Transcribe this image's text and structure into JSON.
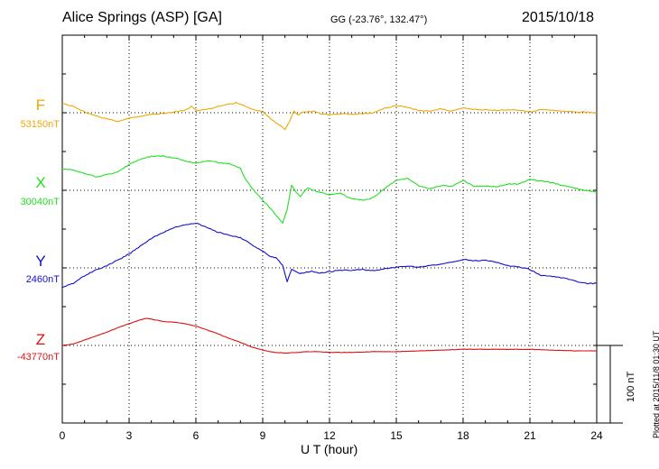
{
  "header": {
    "station": "Alice Springs (ASP)  [GA]",
    "coords": "GG (-23.76°, 132.47°)",
    "date": "2015/10/18"
  },
  "plotted_note": "Plotted at 2015/11/8 01:30 UT",
  "scale_label": "100 nT",
  "colors": {
    "F": "#f0a800",
    "X": "#22e022",
    "Y": "#1010d0",
    "Z": "#e01010",
    "grid": "#000000"
  },
  "chart_data": {
    "type": "line",
    "xlabel": "U T (hour)",
    "xlim": [
      0,
      24
    ],
    "xticks": [
      "0",
      "3",
      "6",
      "9",
      "12",
      "15",
      "18",
      "21",
      "24"
    ],
    "grid": "dotted",
    "scale_bar_nT": 100,
    "series": [
      {
        "name": "F",
        "baseline_label": "53150nT",
        "x": [
          0,
          0.5,
          1,
          1.5,
          2,
          2.5,
          3,
          3.5,
          4,
          4.5,
          5,
          5.5,
          5.8,
          6,
          6.5,
          7,
          7.5,
          7.8,
          8,
          8.5,
          9,
          9.2,
          9.5,
          9.8,
          10,
          10.2,
          10.4,
          10.6,
          10.8,
          11,
          11.3,
          11.6,
          12,
          12.5,
          13,
          13.5,
          14,
          14.5,
          15,
          15.5,
          16,
          16.5,
          17,
          17.5,
          18,
          18.5,
          19,
          19.5,
          20,
          20.5,
          21,
          21.5,
          22,
          22.5,
          23,
          23.5,
          24
        ],
        "values": [
          12,
          8,
          1,
          -4,
          -8,
          -11,
          -7,
          -5,
          -2,
          -1,
          1,
          3,
          8,
          3,
          4,
          8,
          11,
          13,
          11,
          5,
          1,
          -4,
          -11,
          -17,
          -22,
          -12,
          2,
          -3,
          1,
          1,
          2,
          -1,
          -3,
          -1,
          -2,
          -1,
          0,
          6,
          9,
          7,
          3,
          2,
          5,
          2,
          6,
          4,
          4,
          3,
          4,
          3,
          1,
          4,
          3,
          2,
          1,
          1,
          0
        ]
      },
      {
        "name": "X",
        "baseline_label": "30040nT",
        "x": [
          0,
          0.5,
          1,
          1.5,
          2,
          2.5,
          3,
          3.5,
          4,
          4.5,
          5,
          5.5,
          6,
          6.5,
          7,
          7.5,
          8,
          8.2,
          8.5,
          9,
          9.3,
          9.6,
          9.9,
          10.1,
          10.3,
          10.5,
          10.7,
          11,
          11.5,
          12,
          12.5,
          13,
          13.5,
          14,
          14.5,
          15,
          15.5,
          16,
          16.5,
          17,
          17.5,
          18,
          18.5,
          19,
          19.5,
          20,
          20.5,
          21,
          21.5,
          22,
          22.5,
          23,
          23.5,
          24
        ],
        "values": [
          28,
          26,
          22,
          17,
          20,
          24,
          33,
          40,
          44,
          44,
          42,
          38,
          35,
          38,
          36,
          34,
          28,
          16,
          3,
          -13,
          -22,
          -32,
          -42,
          -25,
          7,
          -2,
          -8,
          3,
          -2,
          -6,
          -4,
          -11,
          -13,
          -9,
          3,
          13,
          15,
          6,
          2,
          6,
          5,
          13,
          5,
          6,
          4,
          8,
          8,
          14,
          12,
          10,
          6,
          3,
          0,
          -2
        ]
      },
      {
        "name": "Y",
        "baseline_label": "2460nT",
        "x": [
          0,
          0.5,
          1,
          1.5,
          2,
          2.5,
          3,
          3.5,
          4,
          4.5,
          5,
          5.5,
          6,
          6.5,
          7,
          7.5,
          8,
          8.5,
          9,
          9.3,
          9.6,
          9.9,
          10.1,
          10.3,
          10.6,
          10.9,
          11.2,
          11.5,
          12,
          12.5,
          13,
          13.5,
          14,
          14.5,
          15,
          15.5,
          16,
          16.5,
          17,
          17.5,
          18,
          18.5,
          19,
          19.5,
          20,
          20.5,
          21,
          21.5,
          22,
          22.5,
          23,
          23.5,
          24
        ],
        "values": [
          -25,
          -20,
          -10,
          -3,
          3,
          10,
          18,
          28,
          38,
          45,
          52,
          55,
          58,
          52,
          46,
          42,
          39,
          30,
          22,
          15,
          13,
          3,
          -18,
          -2,
          -7,
          -6,
          -4,
          -7,
          -5,
          -3,
          -3,
          -2,
          -4,
          -1,
          1,
          2,
          1,
          3,
          5,
          7,
          11,
          9,
          10,
          7,
          3,
          1,
          -2,
          -10,
          -11,
          -13,
          -17,
          -20,
          -20
        ]
      },
      {
        "name": "Z",
        "baseline_label": "-43770nT",
        "x": [
          0,
          0.5,
          1,
          1.5,
          2,
          2.5,
          3,
          3.5,
          3.8,
          4,
          4.5,
          5,
          5.5,
          6,
          6.5,
          7,
          7.5,
          8,
          8.5,
          9,
          9.5,
          10,
          10.5,
          11,
          11.5,
          12,
          13,
          14,
          15,
          16,
          17,
          18,
          19,
          20,
          21,
          22,
          23,
          24
        ],
        "values": [
          0,
          2,
          7,
          12,
          17,
          23,
          28,
          33,
          35,
          34,
          31,
          30,
          28,
          25,
          20,
          15,
          9,
          4,
          -2,
          -6,
          -9,
          -10,
          -9,
          -8,
          -8,
          -9,
          -9,
          -8,
          -8,
          -7,
          -6,
          -5,
          -5,
          -5,
          -5,
          -6,
          -7,
          -7
        ]
      }
    ]
  }
}
